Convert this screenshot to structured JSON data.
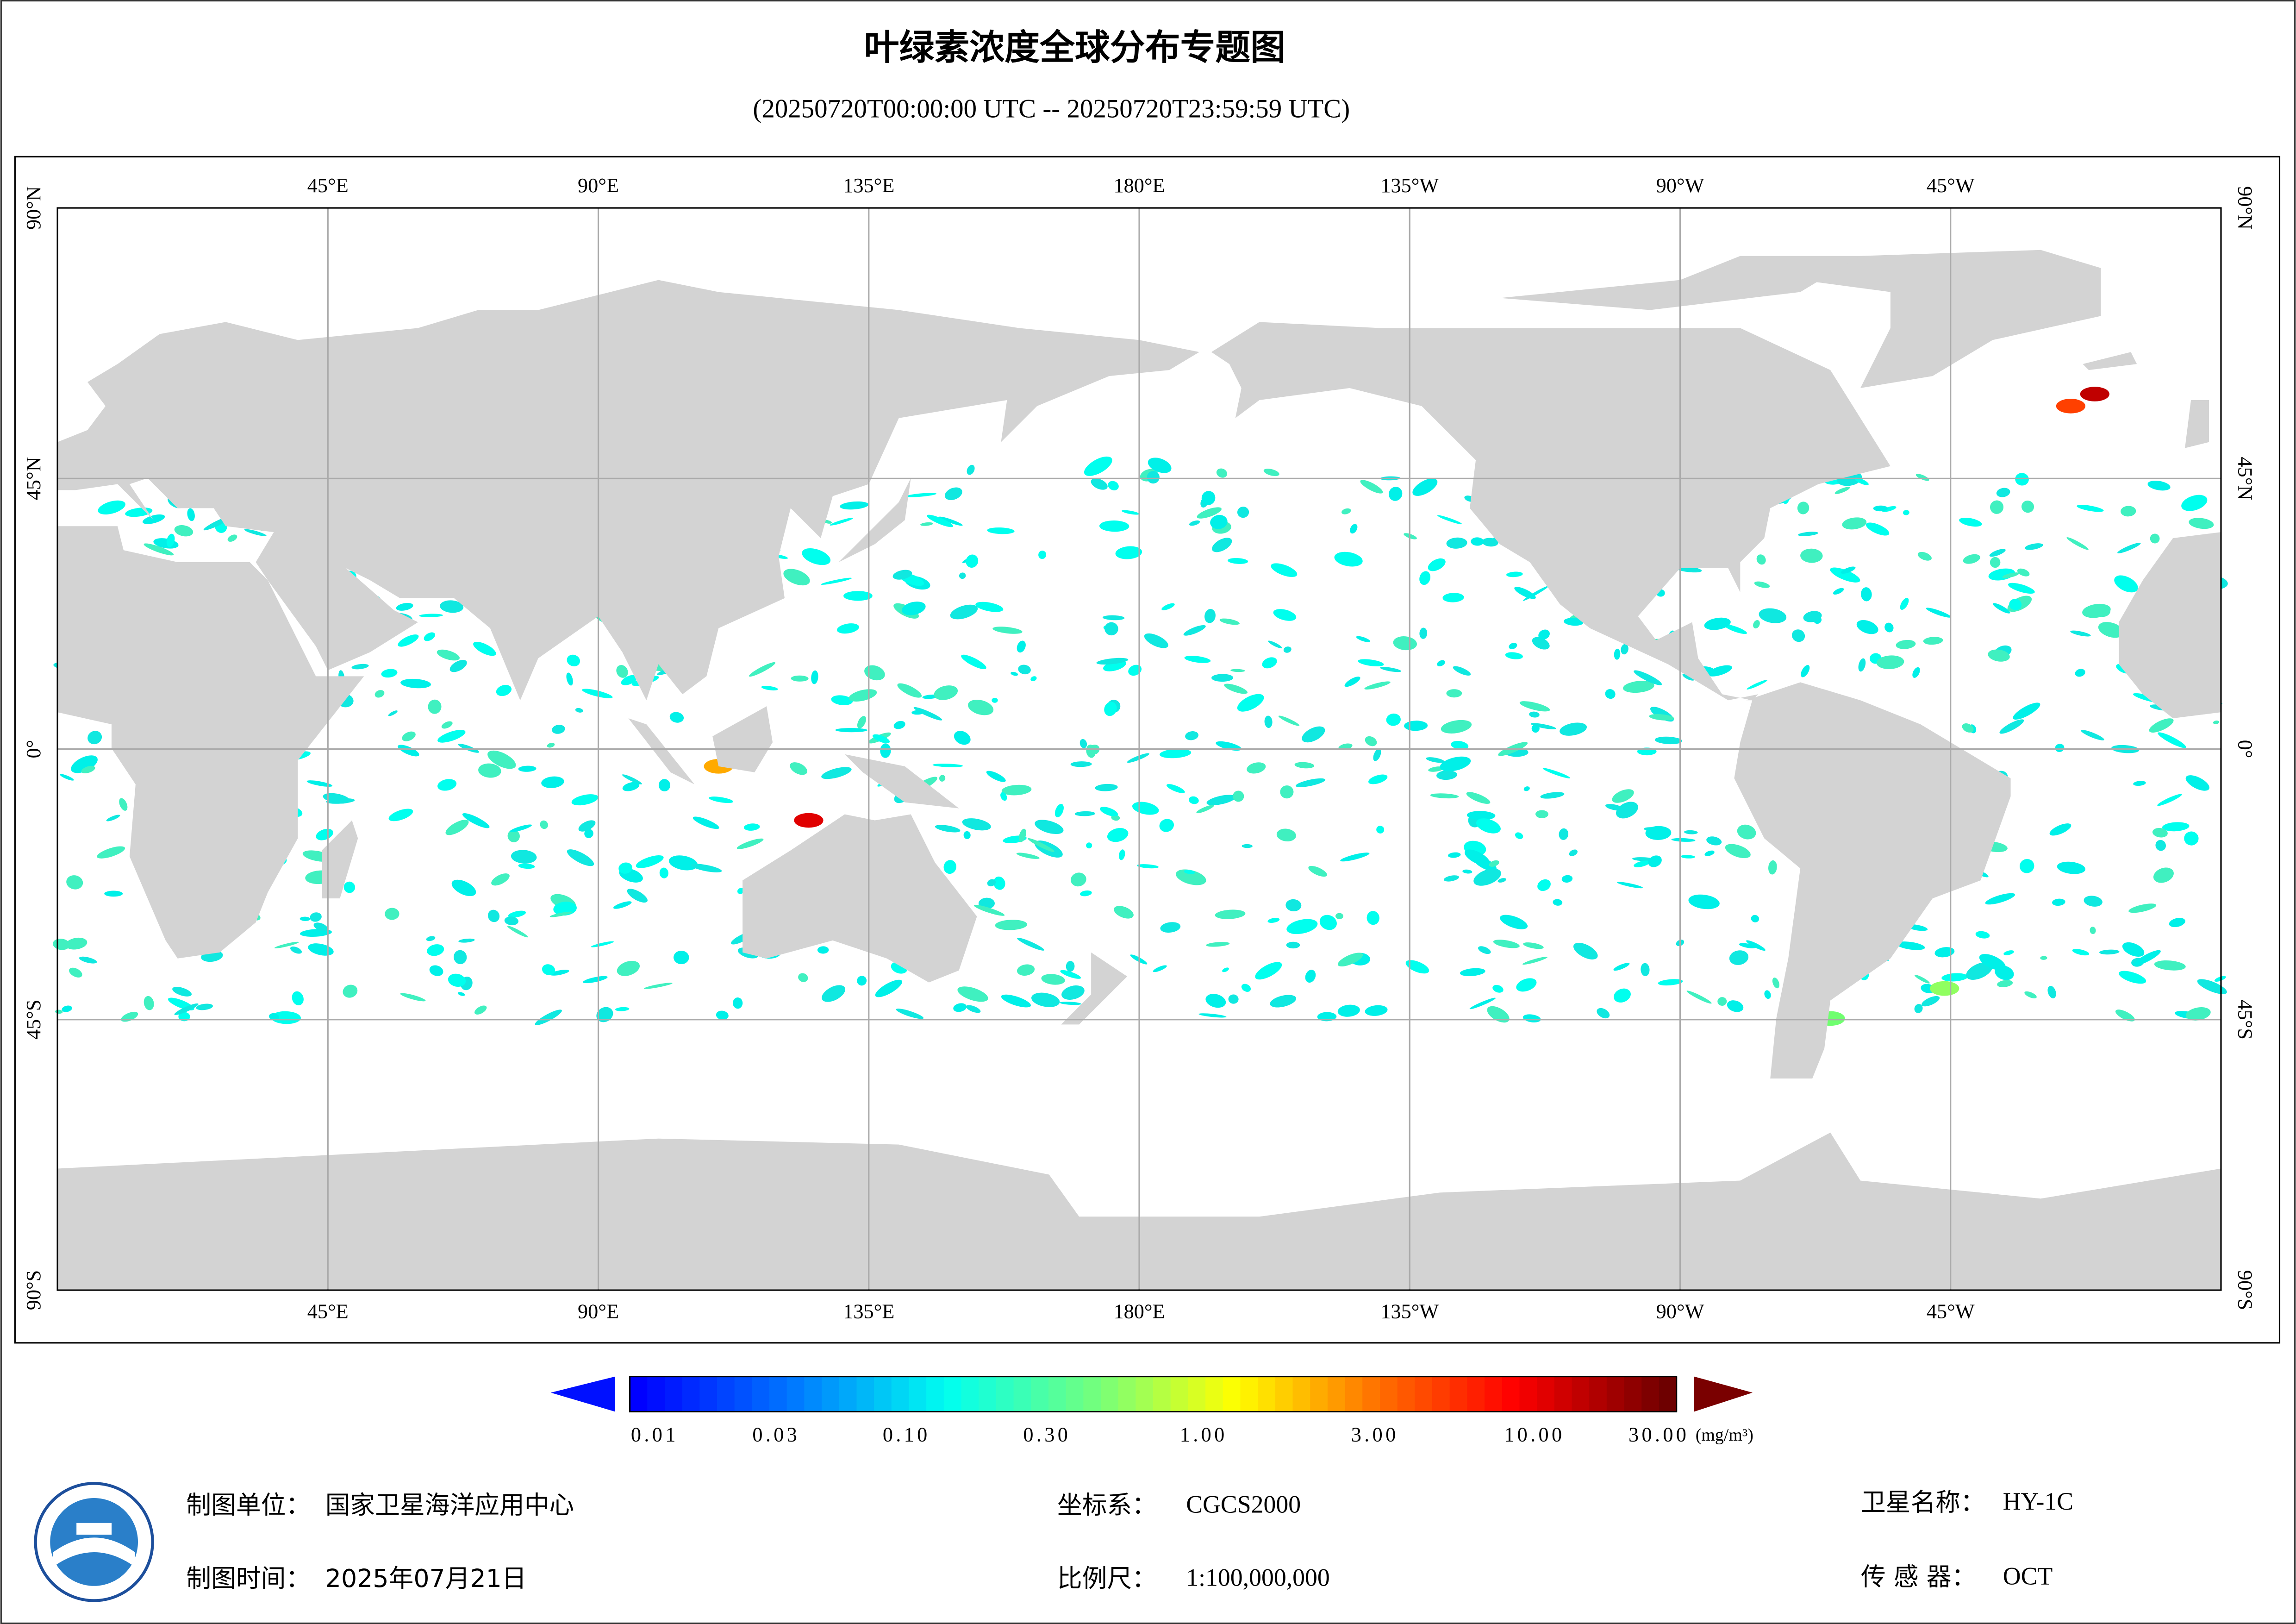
{
  "header": {
    "title": "叶绿素浓度全球分布专题图",
    "subtitle": "(20250720T00:00:00 UTC -- 20250720T23:59:59 UTC)"
  },
  "map": {
    "lon_labels": [
      "45°E",
      "90°E",
      "135°E",
      "180°E",
      "135°W",
      "90°W",
      "45°W"
    ],
    "lat_labels": [
      "90°N",
      "45°N",
      "0°",
      "45°S",
      "90°S"
    ]
  },
  "legend": {
    "labels": [
      "0.01",
      "0.03",
      "0.10",
      "0.30",
      "1.00",
      "3.00",
      "10.00",
      "30.00"
    ],
    "unit": "(mg/m³)"
  },
  "footer": {
    "fields": [
      {
        "label": "制图单位：",
        "value": "国家卫星海洋应用中心"
      },
      {
        "label": "制图时间：",
        "value": "2025年07月21日"
      },
      {
        "label": "坐标系：",
        "value": "CGCS2000"
      },
      {
        "label": "比例尺：",
        "value": "1:100,000,000"
      },
      {
        "label": "卫星名称：",
        "value": "HY-1C"
      },
      {
        "label": "传 感 器：",
        "value": "OCT"
      }
    ]
  }
}
